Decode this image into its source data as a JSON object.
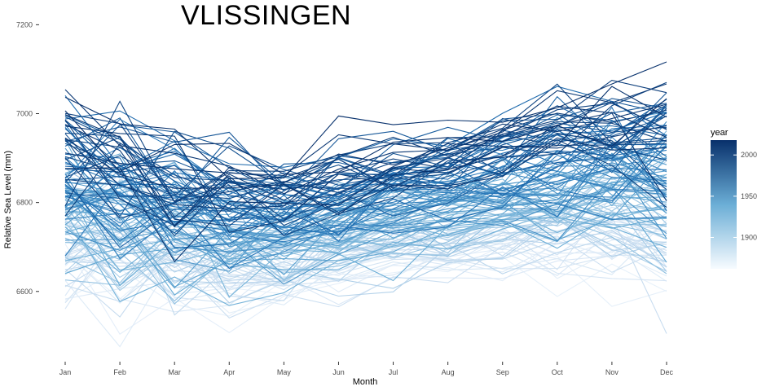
{
  "chart_data": {
    "type": "line",
    "title": "VLISSINGEN",
    "xlabel": "Month",
    "ylabel": "Relative Sea Level (mm)",
    "categories": [
      "Jan",
      "Feb",
      "Mar",
      "Apr",
      "May",
      "Jun",
      "Jul",
      "Aug",
      "Sep",
      "Oct",
      "Nov",
      "Dec"
    ],
    "ylim": [
      6420,
      7230
    ],
    "yticks": [
      6600,
      6800,
      7000,
      7200
    ],
    "grid": false,
    "legend": {
      "title": "year",
      "position": "right",
      "ticks": [
        1900,
        1950,
        2000
      ],
      "range": [
        1862,
        2018
      ],
      "color_low": "#f7fbff",
      "color_high": "#08306b"
    },
    "year_range": [
      1862,
      2018
    ],
    "series_count": 157,
    "monthly_mean_start": [
      6640,
      6620,
      6610,
      6600,
      6620,
      6630,
      6650,
      6660,
      6680,
      6690,
      6700,
      6680
    ],
    "monthly_mean_end": [
      6960,
      6930,
      6890,
      6860,
      6860,
      6870,
      6900,
      6920,
      6950,
      6980,
      6990,
      7000
    ],
    "variability_sd": [
      75,
      80,
      80,
      60,
      45,
      40,
      35,
      35,
      40,
      55,
      65,
      80
    ]
  }
}
